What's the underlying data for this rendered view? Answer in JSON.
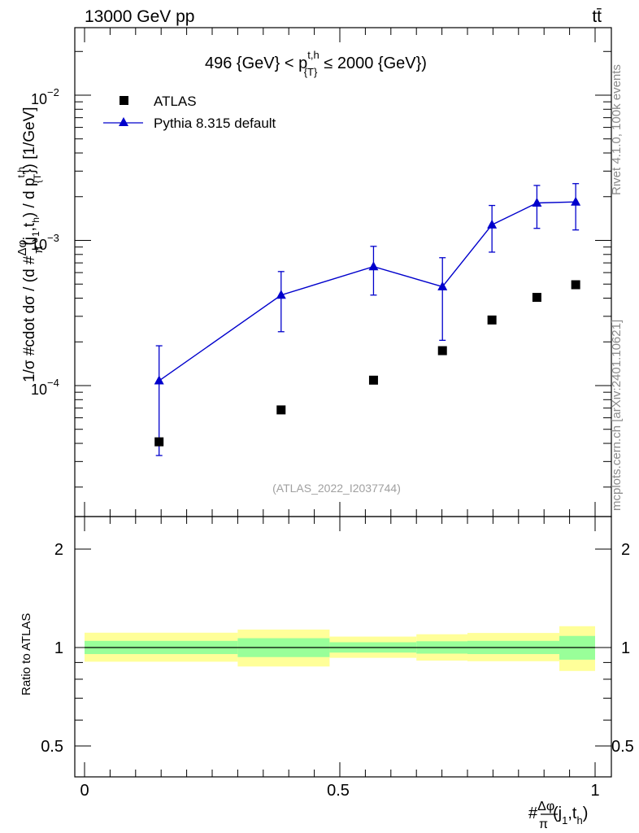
{
  "header": {
    "energy_label": "13000 GeV pp",
    "process_label": "tt̄"
  },
  "side_labels": {
    "rivet": "Rivet 4.1.0,  100k events",
    "mcplots": "mcplots.cern.ch [arXiv:2401.10621]"
  },
  "chart_data": [
    {
      "type": "scatter",
      "title": "496 {GeV} < p_{T}^{t,h} ≤ 2000 {GeV})",
      "title_parts": {
        "pre": "496 {GeV} < p",
        "sup": "t,h",
        "sub": "{T}",
        "post": "≤ 2000 {GeV})"
      },
      "ylabel": "1/σ #cdot dσ / (d #Δφ/π(j_1,t_h) / d p_{T}^{t,h}) [1/GeV]",
      "ylabel_parts": {
        "a": "1/σ #cdot dσ / (d #",
        "frac_num": "Δφ",
        "frac_den": "π",
        "b": "(j",
        "c": ",t",
        "d": ") / d p",
        "e": "}) [1/GeV]",
        "sub1": "1",
        "subh": "h",
        "subT": "{T",
        "supth": "t,h"
      },
      "yscale": "log",
      "ylim": [
        1.5e-05,
        0.03
      ],
      "xlim": [
        -0.02,
        1.02
      ],
      "watermark": "(ATLAS_2022_I2037744)",
      "y_tick_labels": [
        {
          "value": 0.0001,
          "base": "10",
          "exp": "−4"
        },
        {
          "value": 0.001,
          "base": "10",
          "exp": "−3"
        },
        {
          "value": 0.01,
          "base": "10",
          "exp": "−2"
        }
      ],
      "legend": {
        "placement": "top-left",
        "entries": [
          "ATLAS",
          "Pythia 8.315 default"
        ]
      },
      "series": [
        {
          "name": "ATLAS",
          "marker": "square",
          "color": "#000000",
          "x": [
            0.146,
            0.385,
            0.566,
            0.701,
            0.798,
            0.886,
            0.962
          ],
          "y": [
            4.1e-05,
            6.8e-05,
            0.000109,
            0.000174,
            0.000283,
            0.000405,
            0.000495
          ]
        },
        {
          "name": "Pythia 8.315 default",
          "marker": "triangle",
          "color": "#0000cc",
          "x": [
            0.146,
            0.385,
            0.566,
            0.701,
            0.798,
            0.886,
            0.962
          ],
          "y": [
            0.000108,
            0.00042,
            0.00066,
            0.00048,
            0.00128,
            0.00181,
            0.00184
          ],
          "err_low": [
            3.3e-05,
            0.000235,
            0.00042,
            0.000205,
            0.00083,
            0.00121,
            0.00118
          ],
          "err_high": [
            0.000188,
            0.00061,
            0.00091,
            0.00076,
            0.00174,
            0.00239,
            0.00246
          ]
        }
      ]
    },
    {
      "type": "area",
      "ylabel": "Ratio to ATLAS",
      "xlabel": "#Δφ/π(j_1,t_h)",
      "xlabel_parts": {
        "hash": "#",
        "frac_num": "Δφ",
        "frac_den": "π",
        "a": "(j",
        "b": ",t",
        "c": ")",
        "sub1": "1",
        "subh": "h"
      },
      "yscale": "log",
      "ylim": [
        0.4,
        2.5
      ],
      "xlim": [
        -0.02,
        1.02
      ],
      "y_tick_labels": [
        "2",
        "1",
        "0.5"
      ],
      "x_tick_labels": [
        "0",
        "0.5",
        "1"
      ],
      "bands": [
        {
          "x0": 0.0,
          "x1": 0.3,
          "inner": [
            0.955,
            1.048
          ],
          "outer": [
            0.905,
            1.11
          ]
        },
        {
          "x0": 0.3,
          "x1": 0.48,
          "inner": [
            0.935,
            1.068
          ],
          "outer": [
            0.875,
            1.135
          ]
        },
        {
          "x0": 0.48,
          "x1": 0.65,
          "inner": [
            0.965,
            1.038
          ],
          "outer": [
            0.93,
            1.08
          ]
        },
        {
          "x0": 0.65,
          "x1": 0.75,
          "inner": [
            0.958,
            1.045
          ],
          "outer": [
            0.912,
            1.098
          ]
        },
        {
          "x0": 0.75,
          "x1": 0.93,
          "inner": [
            0.955,
            1.048
          ],
          "outer": [
            0.908,
            1.108
          ]
        },
        {
          "x0": 0.93,
          "x1": 1.0,
          "inner": [
            0.918,
            1.085
          ],
          "outer": [
            0.848,
            1.162
          ]
        }
      ],
      "inner_color": "#99ff99",
      "outer_color": "#ffff99",
      "reference_line": 1
    }
  ]
}
